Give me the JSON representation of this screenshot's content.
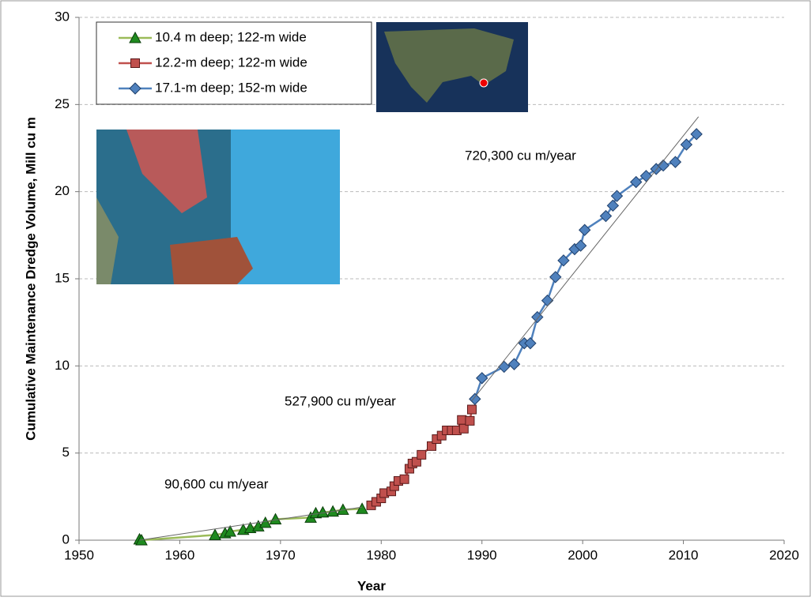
{
  "chart_data": {
    "type": "line",
    "x_label": "Year",
    "y_label": "Cumulative Maintenance Dredge Volume, Mill cu m",
    "xlim": [
      1950,
      2020
    ],
    "xticks": [
      1950,
      1960,
      1970,
      1980,
      1990,
      2000,
      2010,
      2020
    ],
    "ylim": [
      0,
      30
    ],
    "yticks": [
      0,
      5,
      10,
      15,
      20,
      25,
      30
    ],
    "grid": true,
    "legend": "upper left",
    "series": [
      {
        "name": "10.4 m deep; 122-m wide",
        "color": "#9bbb59",
        "marker": "triangle",
        "marker_color": "#1f8a1f",
        "x": [
          1956,
          1956.2,
          1963.5,
          1964.5,
          1965,
          1966.3,
          1967,
          1967.8,
          1968.5,
          1969.5,
          1973,
          1973.5,
          1974.2,
          1975.2,
          1976.2,
          1978.1
        ],
        "values": [
          0.05,
          0,
          0.3,
          0.4,
          0.5,
          0.6,
          0.7,
          0.8,
          1.0,
          1.2,
          1.3,
          1.55,
          1.6,
          1.65,
          1.75,
          1.8
        ]
      },
      {
        "name": "12.2-m deep; 122-m wide",
        "color": "#c0504d",
        "marker": "square",
        "marker_color": "#c0504d",
        "x": [
          1979,
          1979.5,
          1980,
          1980.3,
          1981,
          1981.3,
          1981.7,
          1982.3,
          1982.8,
          1983.1,
          1983.5,
          1984,
          1985,
          1985.5,
          1986,
          1986.5,
          1987,
          1987.5,
          1988,
          1988.2,
          1988.8,
          1989
        ],
        "values": [
          2.0,
          2.2,
          2.4,
          2.7,
          2.8,
          3.1,
          3.4,
          3.5,
          4.1,
          4.4,
          4.5,
          4.9,
          5.4,
          5.8,
          6.0,
          6.3,
          6.3,
          6.3,
          6.9,
          6.4,
          6.85,
          7.5
        ]
      },
      {
        "name": "17.1-m deep; 152-m wide",
        "color": "#4f81bd",
        "marker": "diamond",
        "marker_color": "#4f81bd",
        "x": [
          1989.3,
          1990,
          1992.2,
          1993.2,
          1994.2,
          1994.8,
          1995.5,
          1996.5,
          1997.3,
          1998.1,
          1999.2,
          1999.8,
          2000.2,
          2002.3,
          2003,
          2003.4,
          2005.3,
          2006.3,
          2007.3,
          2008,
          2009.2,
          2010.3,
          2011.3
        ],
        "values": [
          8.1,
          9.3,
          9.95,
          10.1,
          11.3,
          11.3,
          12.8,
          13.75,
          15.1,
          16.05,
          16.7,
          16.9,
          17.8,
          18.6,
          19.2,
          19.75,
          20.55,
          20.9,
          21.3,
          21.5,
          21.7,
          22.7,
          23.3
        ]
      }
    ],
    "trend_lines": [
      {
        "x": [
          1956,
          1978.1
        ],
        "values": [
          0,
          1.9
        ]
      },
      {
        "x": [
          1989,
          2011.5
        ],
        "values": [
          8.0,
          24.3
        ]
      }
    ],
    "annotations": [
      "90,600 cu m/year",
      "527,900 cu m/year",
      "720,300 cu m/year"
    ]
  }
}
